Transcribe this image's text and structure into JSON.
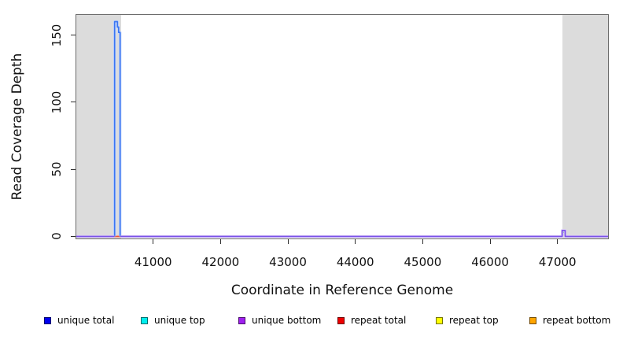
{
  "chart_data": {
    "type": "line",
    "title": "",
    "xlabel": "Coordinate in Reference Genome",
    "ylabel": "Read Coverage Depth",
    "xlim": [
      39860,
      47750
    ],
    "ylim": [
      -1.5,
      165
    ],
    "xticks": [
      "41000",
      "42000",
      "43000",
      "44000",
      "45000",
      "46000",
      "47000"
    ],
    "xtick_values": [
      41000,
      42000,
      43000,
      44000,
      45000,
      46000,
      47000
    ],
    "yticks": [
      "0",
      "50",
      "100",
      "150"
    ],
    "ytick_values": [
      0,
      50,
      100,
      150
    ],
    "grid": false,
    "legend_position": "bottom",
    "axis_color": "#2e2e2e",
    "box_color": "#6b6b6b",
    "shaded_regions": [
      {
        "x0": 39860,
        "x1": 40525,
        "color": "#DCDCDC"
      },
      {
        "x0": 47073,
        "x1": 47750,
        "color": "#DCDCDC"
      }
    ],
    "series": [
      {
        "name": "repeat top",
        "legend_color": "#FFFF00",
        "line_color": "#FFFF00",
        "width": 1.4,
        "paths": [],
        "note": "flat at 0, hidden beneath other series"
      },
      {
        "name": "repeat bottom",
        "legend_color": "#FFA500",
        "line_color": "#FFA500",
        "width": 1.4,
        "paths": [],
        "note": "flat at 0, hidden beneath other series"
      },
      {
        "name": "repeat total",
        "legend_color": "#EE0000",
        "line_color": "#E85038",
        "halo": "#F7C5B8",
        "width": 1.6,
        "paths": [
          [
            [
              40424,
              0
            ],
            [
              40516,
              0
            ]
          ]
        ],
        "note": "visible red segment at depth 0 beneath the unique-total spike"
      },
      {
        "name": "unique top",
        "legend_color": "#00EEEE",
        "line_color": "#43BD62",
        "width": 1.4,
        "paths": [
          [
            [
              47078,
              0
            ],
            [
              47078,
              3
            ],
            [
              47108,
              3
            ],
            [
              47108,
              0
            ]
          ]
        ],
        "note": "small bump ~3 reads near x=47090"
      },
      {
        "name": "unique total",
        "legend_color": "#0000EE",
        "line_color": "#3B76F2",
        "halo": "#C7D8FB",
        "width": 1.7,
        "paths": [
          [
            [
              40428,
              0
            ],
            [
              40428,
              160
            ],
            [
              40470,
              160
            ],
            [
              40470,
              156
            ],
            [
              40488,
              156
            ],
            [
              40488,
              152
            ],
            [
              40510,
              152
            ],
            [
              40510,
              0
            ]
          ]
        ],
        "note": "tall spike ~160 reads near x=40470"
      },
      {
        "name": "unique bottom",
        "legend_color": "#A020F0",
        "line_color": "#7B52E8",
        "halo": "#DACBF8",
        "width": 1.6,
        "paths": [
          [
            [
              39860,
              0
            ],
            [
              40424,
              0
            ]
          ],
          [
            [
              40516,
              0
            ],
            [
              47070,
              0
            ],
            [
              47070,
              4.5
            ],
            [
              47114,
              4.5
            ],
            [
              47114,
              0
            ],
            [
              47750,
              0
            ]
          ]
        ],
        "note": "baseline at 0 across plot with small bump ~4 reads near x=47090"
      }
    ],
    "legend": {
      "items": [
        {
          "label": "unique total",
          "color": "#0000EE"
        },
        {
          "label": "unique top",
          "color": "#00EEEE"
        },
        {
          "label": "unique bottom",
          "color": "#A020F0"
        },
        {
          "label": "repeat total",
          "color": "#EE0000"
        },
        {
          "label": "repeat top",
          "color": "#FFFF00"
        },
        {
          "label": "repeat bottom",
          "color": "#FFA500"
        }
      ]
    }
  }
}
